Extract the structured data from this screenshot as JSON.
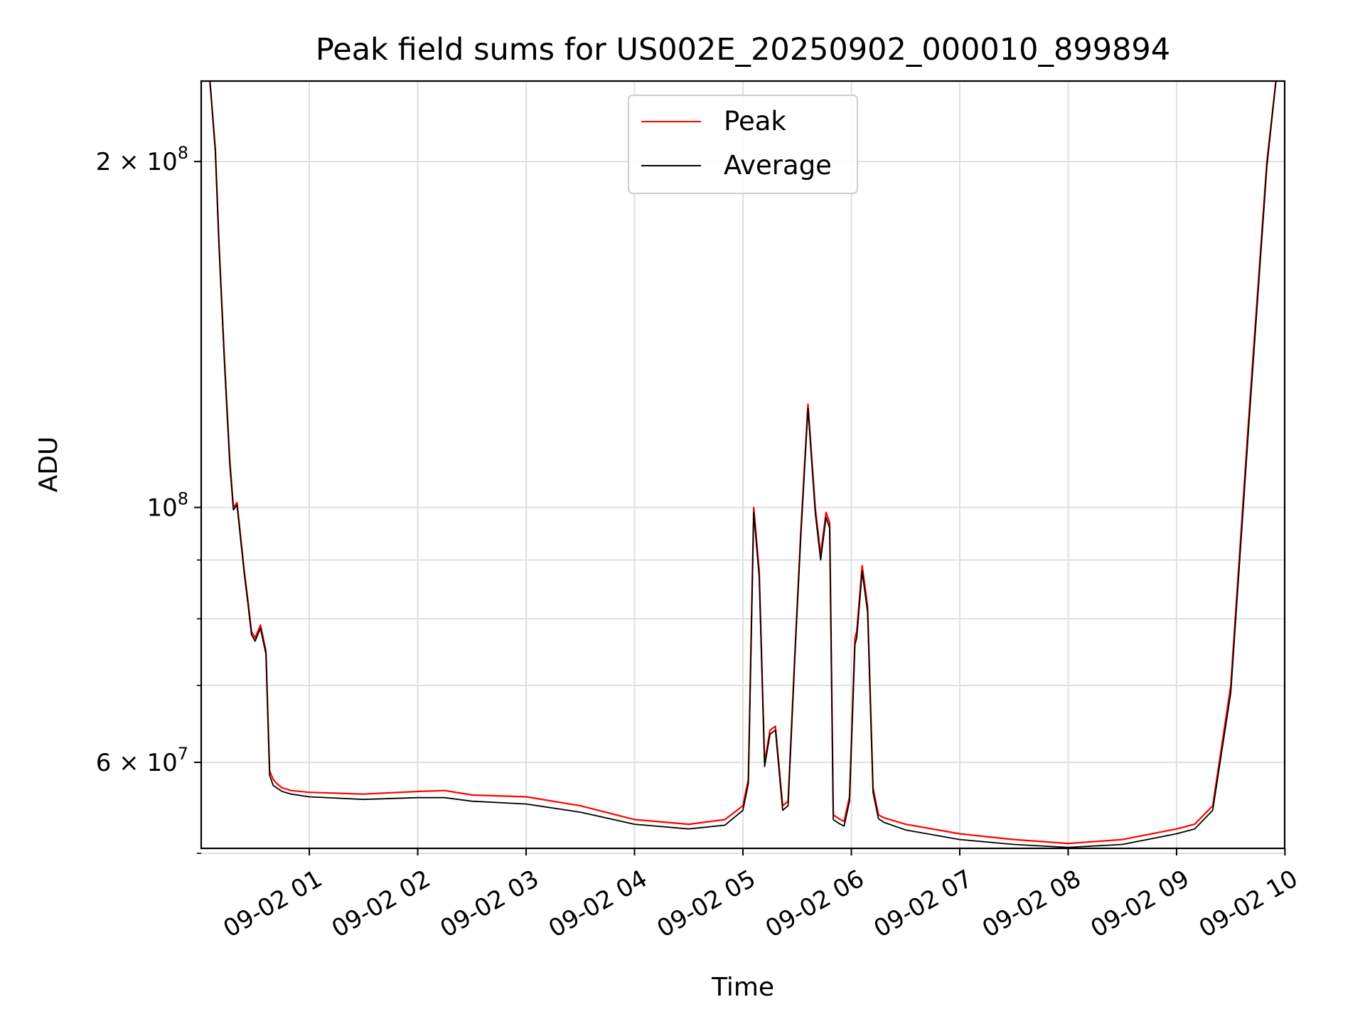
{
  "chart_data": {
    "type": "line",
    "title": "Peak field sums for US002E_20250902_000010_899894",
    "xlabel": "Time",
    "ylabel": "ADU",
    "y_scale": "log",
    "ylim": [
      50500000,
      235000000
    ],
    "xlim": [
      "2025-09-02 00:00:10",
      "2025-09-02 09:59:50"
    ],
    "x_tick_labels": [
      "09-02 01",
      "09-02 02",
      "09-02 03",
      "09-02 04",
      "09-02 05",
      "09-02 06",
      "09-02 07",
      "09-02 08",
      "09-02 09",
      "09-02 10"
    ],
    "x_tick_values": [
      "2025-09-02 01:00",
      "2025-09-02 02:00",
      "2025-09-02 03:00",
      "2025-09-02 04:00",
      "2025-09-02 05:00",
      "2025-09-02 06:00",
      "2025-09-02 07:00",
      "2025-09-02 08:00",
      "2025-09-02 09:00",
      "2025-09-02 10:00"
    ],
    "y_major_ticks": [
      {
        "value": 60000000,
        "label": "6 × 10",
        "exp": "7"
      },
      {
        "value": 100000000,
        "label": "10",
        "exp": "8"
      },
      {
        "value": 200000000,
        "label": "2 × 10",
        "exp": "8"
      }
    ],
    "y_minor_ticks": [
      50000000,
      70000000,
      80000000,
      90000000
    ],
    "grid": true,
    "legend_position": "top-center",
    "series": [
      {
        "name": "Peak",
        "color": "#ff0000",
        "x": [
          "2025-09-02 00:00",
          "2025-09-02 00:05",
          "2025-09-02 00:08",
          "2025-09-02 00:10",
          "2025-09-02 00:13",
          "2025-09-02 00:16",
          "2025-09-02 00:18",
          "2025-09-02 00:20",
          "2025-09-02 00:24",
          "2025-09-02 00:26",
          "2025-09-02 00:28",
          "2025-09-02 00:30",
          "2025-09-02 00:33",
          "2025-09-02 00:36",
          "2025-09-02 00:38",
          "2025-09-02 00:40",
          "2025-09-02 00:42",
          "2025-09-02 00:45",
          "2025-09-02 00:50",
          "2025-09-02 01:00",
          "2025-09-02 01:30",
          "2025-09-02 02:00",
          "2025-09-02 02:15",
          "2025-09-02 02:30",
          "2025-09-02 03:00",
          "2025-09-02 03:30",
          "2025-09-02 04:00",
          "2025-09-02 04:30",
          "2025-09-02 04:50",
          "2025-09-02 05:00",
          "2025-09-02 05:03",
          "2025-09-02 05:06",
          "2025-09-02 05:09",
          "2025-09-02 05:12",
          "2025-09-02 05:15",
          "2025-09-02 05:18",
          "2025-09-02 05:22",
          "2025-09-02 05:25",
          "2025-09-02 05:29",
          "2025-09-02 05:32",
          "2025-09-02 05:36",
          "2025-09-02 05:40",
          "2025-09-02 05:43",
          "2025-09-02 05:46",
          "2025-09-02 05:48",
          "2025-09-02 05:50",
          "2025-09-02 05:53",
          "2025-09-02 05:56",
          "2025-09-02 05:59",
          "2025-09-02 06:02",
          "2025-09-02 06:03",
          "2025-09-02 06:06",
          "2025-09-02 06:09",
          "2025-09-02 06:12",
          "2025-09-02 06:15",
          "2025-09-02 06:18",
          "2025-09-02 06:30",
          "2025-09-02 07:00",
          "2025-09-02 07:30",
          "2025-09-02 08:00",
          "2025-09-02 08:30",
          "2025-09-02 09:00",
          "2025-09-02 09:10",
          "2025-09-02 09:20",
          "2025-09-02 09:30",
          "2025-09-02 09:40",
          "2025-09-02 09:50",
          "2025-09-02 09:55"
        ],
        "values": [
          235000000,
          235000000,
          205000000,
          170000000,
          135000000,
          110000000,
          100000000,
          101000000,
          88000000,
          83000000,
          78000000,
          77000000,
          79000000,
          75000000,
          59000000,
          58000000,
          57500000,
          57000000,
          56700000,
          56500000,
          56300000,
          56600000,
          56700000,
          56200000,
          56000000,
          55000000,
          53500000,
          53000000,
          53500000,
          55000000,
          58000000,
          100000000,
          88000000,
          60000000,
          64000000,
          64500000,
          55000000,
          55500000,
          76000000,
          95000000,
          123000000,
          100000000,
          91000000,
          99000000,
          97000000,
          54000000,
          53600000,
          53300000,
          56000000,
          77000000,
          78000000,
          89000000,
          82000000,
          57000000,
          54000000,
          53700000,
          53000000,
          52000000,
          51400000,
          51000000,
          51400000,
          52500000,
          53000000,
          55000000,
          70000000,
          120000000,
          200000000,
          235000000
        ]
      },
      {
        "name": "Average",
        "color": "#000000",
        "x": [
          "2025-09-02 00:00",
          "2025-09-02 00:05",
          "2025-09-02 00:08",
          "2025-09-02 00:10",
          "2025-09-02 00:13",
          "2025-09-02 00:16",
          "2025-09-02 00:18",
          "2025-09-02 00:20",
          "2025-09-02 00:24",
          "2025-09-02 00:26",
          "2025-09-02 00:28",
          "2025-09-02 00:30",
          "2025-09-02 00:33",
          "2025-09-02 00:36",
          "2025-09-02 00:38",
          "2025-09-02 00:40",
          "2025-09-02 00:42",
          "2025-09-02 00:45",
          "2025-09-02 00:50",
          "2025-09-02 01:00",
          "2025-09-02 01:30",
          "2025-09-02 02:00",
          "2025-09-02 02:15",
          "2025-09-02 02:30",
          "2025-09-02 03:00",
          "2025-09-02 03:30",
          "2025-09-02 04:00",
          "2025-09-02 04:30",
          "2025-09-02 04:50",
          "2025-09-02 05:00",
          "2025-09-02 05:03",
          "2025-09-02 05:06",
          "2025-09-02 05:09",
          "2025-09-02 05:12",
          "2025-09-02 05:15",
          "2025-09-02 05:18",
          "2025-09-02 05:22",
          "2025-09-02 05:25",
          "2025-09-02 05:29",
          "2025-09-02 05:32",
          "2025-09-02 05:36",
          "2025-09-02 05:40",
          "2025-09-02 05:43",
          "2025-09-02 05:46",
          "2025-09-02 05:48",
          "2025-09-02 05:50",
          "2025-09-02 05:53",
          "2025-09-02 05:56",
          "2025-09-02 05:59",
          "2025-09-02 06:02",
          "2025-09-02 06:03",
          "2025-09-02 06:06",
          "2025-09-02 06:09",
          "2025-09-02 06:12",
          "2025-09-02 06:15",
          "2025-09-02 06:18",
          "2025-09-02 06:30",
          "2025-09-02 07:00",
          "2025-09-02 07:30",
          "2025-09-02 08:00",
          "2025-09-02 08:30",
          "2025-09-02 09:00",
          "2025-09-02 09:10",
          "2025-09-02 09:20",
          "2025-09-02 09:30",
          "2025-09-02 09:40",
          "2025-09-02 09:50",
          "2025-09-02 09:55"
        ],
        "values": [
          235000000,
          235000000,
          204000000,
          169000000,
          134000000,
          109000000,
          99500000,
          100500000,
          87500000,
          82500000,
          77500000,
          76500000,
          78500000,
          74500000,
          58500000,
          57300000,
          57000000,
          56600000,
          56300000,
          56000000,
          55700000,
          55900000,
          55900000,
          55500000,
          55200000,
          54300000,
          53000000,
          52500000,
          52900000,
          54500000,
          57500000,
          99000000,
          87000000,
          59500000,
          63500000,
          64000000,
          54500000,
          55000000,
          75500000,
          94000000,
          122000000,
          99000000,
          90000000,
          98000000,
          96000000,
          53500000,
          53100000,
          52800000,
          55500000,
          76000000,
          77000000,
          88000000,
          81000000,
          56500000,
          53600000,
          53200000,
          52400000,
          51400000,
          50900000,
          50600000,
          50900000,
          52000000,
          52500000,
          54500000,
          69000000,
          118000000,
          198000000,
          235000000
        ]
      }
    ]
  }
}
